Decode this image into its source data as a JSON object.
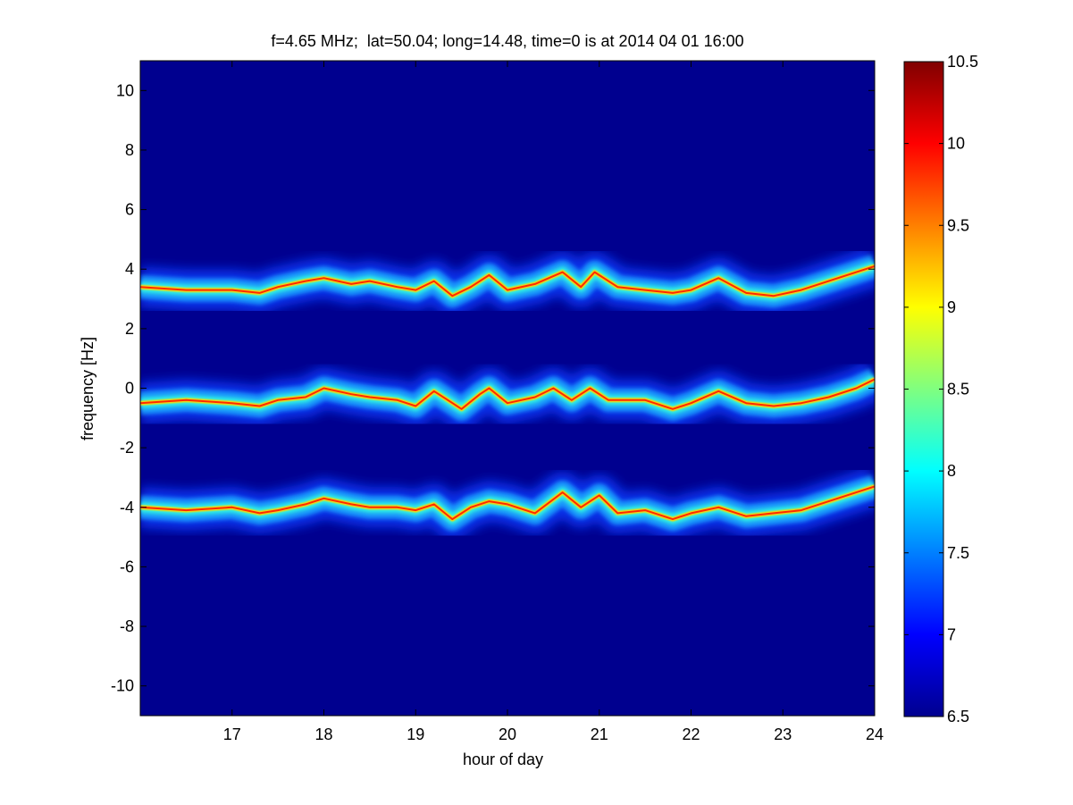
{
  "figure": {
    "background": "#ffffff",
    "title": "f=4.65 MHz;  lat=50.04; long=14.48, time=0 is at 2014 04 01 16:00"
  },
  "chart_data": {
    "type": "heatmap",
    "title": "f=4.65 MHz;  lat=50.04; long=14.48, time=0 is at 2014 04 01 16:00",
    "xlabel": "hour of day",
    "ylabel": "frequency [Hz]",
    "xlim": [
      16,
      24
    ],
    "ylim": [
      -11,
      11
    ],
    "x_ticks": [
      17,
      18,
      19,
      20,
      21,
      22,
      23,
      24
    ],
    "x_tick_labels": [
      "17",
      "18",
      "19",
      "20",
      "21",
      "22",
      "23",
      "24"
    ],
    "y_ticks": [
      10,
      8,
      6,
      4,
      2,
      0,
      -2,
      -4,
      -6,
      -8,
      -10
    ],
    "y_tick_labels": [
      "10",
      "8",
      "6",
      "4",
      "2",
      "0",
      "-2",
      "-4",
      "-6",
      "-8",
      "-10"
    ],
    "colorbar": {
      "colormap": "jet",
      "range": [
        6.5,
        10.5
      ],
      "ticks": [
        10.5,
        10,
        9.5,
        9,
        8.5,
        8,
        7.5,
        7,
        6.5
      ],
      "tick_labels": [
        "10.5",
        "10",
        "9.5",
        "9",
        "8.5",
        "8",
        "7.5",
        "7",
        "6.5"
      ]
    },
    "background_value": 6.5,
    "series": [
      {
        "points": [
          [
            16.0,
            3.4
          ],
          [
            16.5,
            3.3
          ],
          [
            17.0,
            3.3
          ],
          [
            17.3,
            3.2
          ],
          [
            17.5,
            3.4
          ],
          [
            17.8,
            3.6
          ],
          [
            18.0,
            3.7
          ],
          [
            18.3,
            3.5
          ],
          [
            18.5,
            3.6
          ],
          [
            18.8,
            3.4
          ],
          [
            19.0,
            3.3
          ],
          [
            19.2,
            3.6
          ],
          [
            19.4,
            3.1
          ],
          [
            19.6,
            3.4
          ],
          [
            19.8,
            3.8
          ],
          [
            20.0,
            3.3
          ],
          [
            20.3,
            3.5
          ],
          [
            20.6,
            3.9
          ],
          [
            20.8,
            3.4
          ],
          [
            20.95,
            3.9
          ],
          [
            21.2,
            3.4
          ],
          [
            21.5,
            3.3
          ],
          [
            21.8,
            3.2
          ],
          [
            22.0,
            3.3
          ],
          [
            22.3,
            3.7
          ],
          [
            22.6,
            3.2
          ],
          [
            22.9,
            3.1
          ],
          [
            23.2,
            3.3
          ],
          [
            23.5,
            3.6
          ],
          [
            23.8,
            3.9
          ],
          [
            24.0,
            4.1
          ]
        ]
      },
      {
        "points": [
          [
            16.0,
            -0.5
          ],
          [
            16.5,
            -0.4
          ],
          [
            17.0,
            -0.5
          ],
          [
            17.3,
            -0.6
          ],
          [
            17.5,
            -0.4
          ],
          [
            17.8,
            -0.3
          ],
          [
            18.0,
            0.0
          ],
          [
            18.3,
            -0.2
          ],
          [
            18.5,
            -0.3
          ],
          [
            18.8,
            -0.4
          ],
          [
            19.0,
            -0.6
          ],
          [
            19.2,
            -0.1
          ],
          [
            19.5,
            -0.7
          ],
          [
            19.7,
            -0.2
          ],
          [
            19.8,
            0.0
          ],
          [
            20.0,
            -0.5
          ],
          [
            20.3,
            -0.3
          ],
          [
            20.5,
            0.0
          ],
          [
            20.7,
            -0.4
          ],
          [
            20.9,
            0.0
          ],
          [
            21.1,
            -0.4
          ],
          [
            21.5,
            -0.4
          ],
          [
            21.8,
            -0.7
          ],
          [
            22.0,
            -0.5
          ],
          [
            22.3,
            -0.1
          ],
          [
            22.6,
            -0.5
          ],
          [
            22.9,
            -0.6
          ],
          [
            23.2,
            -0.5
          ],
          [
            23.5,
            -0.3
          ],
          [
            23.8,
            0.0
          ],
          [
            24.0,
            0.3
          ]
        ]
      },
      {
        "points": [
          [
            16.0,
            -4.0
          ],
          [
            16.5,
            -4.1
          ],
          [
            17.0,
            -4.0
          ],
          [
            17.3,
            -4.2
          ],
          [
            17.5,
            -4.1
          ],
          [
            17.8,
            -3.9
          ],
          [
            18.0,
            -3.7
          ],
          [
            18.3,
            -3.9
          ],
          [
            18.5,
            -4.0
          ],
          [
            18.8,
            -4.0
          ],
          [
            19.0,
            -4.1
          ],
          [
            19.2,
            -3.9
          ],
          [
            19.4,
            -4.4
          ],
          [
            19.6,
            -4.0
          ],
          [
            19.8,
            -3.8
          ],
          [
            20.0,
            -3.9
          ],
          [
            20.3,
            -4.2
          ],
          [
            20.6,
            -3.5
          ],
          [
            20.8,
            -4.0
          ],
          [
            21.0,
            -3.6
          ],
          [
            21.2,
            -4.2
          ],
          [
            21.5,
            -4.1
          ],
          [
            21.8,
            -4.4
          ],
          [
            22.0,
            -4.2
          ],
          [
            22.3,
            -4.0
          ],
          [
            22.6,
            -4.3
          ],
          [
            22.9,
            -4.2
          ],
          [
            23.2,
            -4.1
          ],
          [
            23.5,
            -3.8
          ],
          [
            23.8,
            -3.5
          ],
          [
            24.0,
            -3.3
          ]
        ]
      }
    ]
  }
}
